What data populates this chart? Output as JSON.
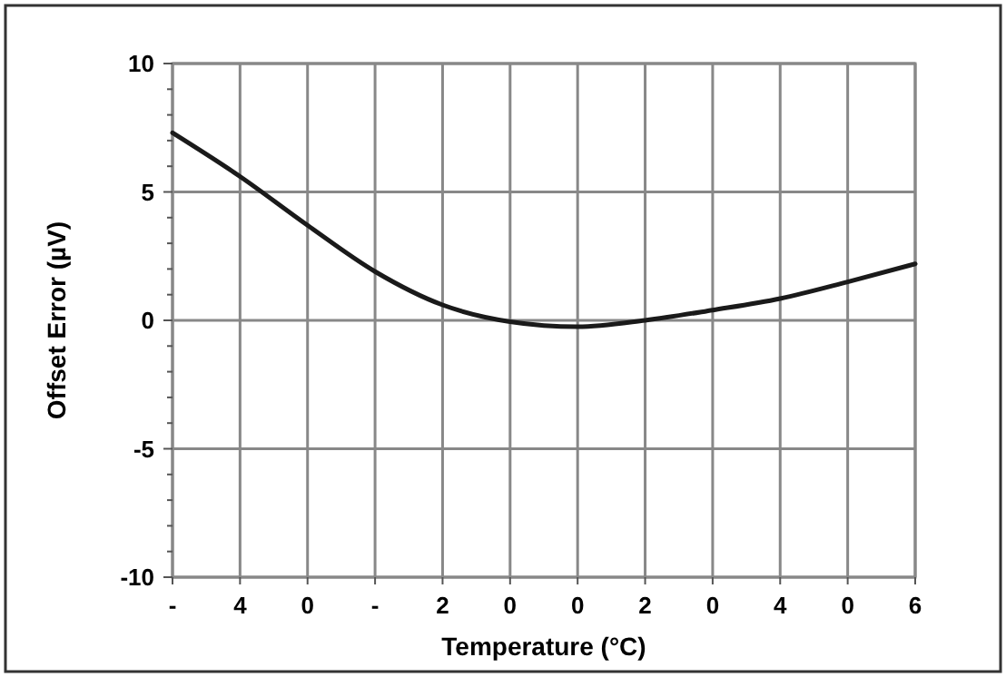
{
  "chart_data": {
    "type": "line",
    "xlabel": "Temperature (°C)",
    "ylabel": "Offset Error (µV)",
    "categories": [
      "-",
      "4",
      "0",
      "-",
      "2",
      "0",
      "0",
      "2",
      "0",
      "4",
      "0",
      "6"
    ],
    "ylim": [
      -10,
      10
    ],
    "yticks": [
      -10,
      -5,
      0,
      5,
      10,
      {
        "value": -9,
        "label": null
      },
      {
        "value": -8,
        "label": null
      },
      {
        "value": -7,
        "label": null
      },
      {
        "value": -6,
        "label": null
      },
      {
        "value": -4,
        "label": null
      },
      {
        "value": -3,
        "label": null
      },
      {
        "value": -2,
        "label": null
      },
      {
        "value": -1,
        "label": null
      },
      {
        "value": 1,
        "label": null
      },
      {
        "value": 2,
        "label": null
      },
      {
        "value": 3,
        "label": null
      },
      {
        "value": 4,
        "label": null
      },
      {
        "value": 6,
        "label": null
      },
      {
        "value": 7,
        "label": null
      },
      {
        "value": 8,
        "label": null
      },
      {
        "value": 9,
        "label": null
      }
    ],
    "grid": true,
    "line_style": "solid",
    "series": [
      {
        "color": "#1a1a1a",
        "values": [
          7.3,
          5.6,
          3.7,
          1.9,
          0.6,
          -0.05,
          -0.25,
          0.0,
          0.4,
          0.85,
          1.5,
          2.2
        ]
      }
    ]
  }
}
